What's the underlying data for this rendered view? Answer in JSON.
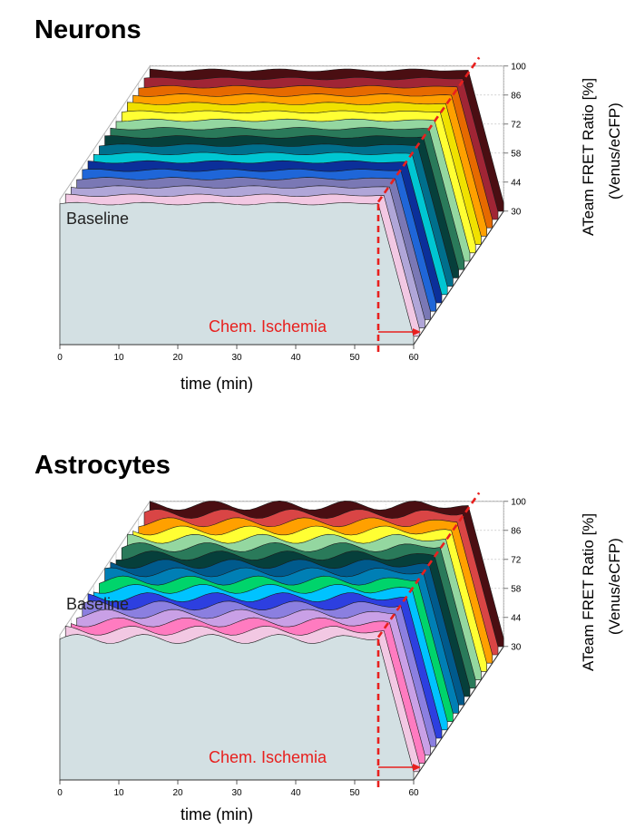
{
  "chart_data": [
    {
      "type": "area",
      "title": "Neurons",
      "xlabel": "time (min)",
      "ylabel_line1": "ATeam FRET Ratio [%]",
      "ylabel_line2": "(Venus/eCFP)",
      "xticks": [
        "0",
        "10",
        "20",
        "30",
        "40",
        "50",
        "60"
      ],
      "yticks": [
        "30",
        "44",
        "58",
        "72",
        "86",
        "100"
      ],
      "xlim": [
        0,
        60
      ],
      "ylim": [
        30,
        100
      ],
      "grid": true,
      "series_colors": [
        "#d3e0e3",
        "#f2c8e3",
        "#b0a6d8",
        "#7a78b5",
        "#1f66d8",
        "#0b2f9a",
        "#00c6d2",
        "#006f8c",
        "#063f3b",
        "#2a7a5a",
        "#94d7a0",
        "#ffff33",
        "#f0e100",
        "#ffa000",
        "#e66a00",
        "#a02535",
        "#4a0e12"
      ],
      "baseline_label": "Baseline",
      "annotation": "Chem. Ischemia",
      "ischemia_time": 54,
      "series_profile": {
        "time": [
          0,
          10,
          20,
          30,
          40,
          50,
          54,
          57,
          60
        ],
        "ratio": [
          98,
          98,
          98,
          98,
          98,
          98,
          98,
          66,
          34
        ]
      }
    },
    {
      "type": "area",
      "title": "Astrocytes",
      "xlabel": "time (min)",
      "ylabel_line1": "ATeam FRET Ratio [%]",
      "ylabel_line2": "(Venus/eCFP)",
      "xticks": [
        "0",
        "10",
        "20",
        "30",
        "40",
        "50",
        "60"
      ],
      "yticks": [
        "30",
        "44",
        "58",
        "72",
        "86",
        "100"
      ],
      "xlim": [
        0,
        60
      ],
      "ylim": [
        30,
        100
      ],
      "grid": true,
      "series_colors": [
        "#d3e0e3",
        "#f2c8e3",
        "#ff7bc0",
        "#c9a0e6",
        "#8b7fe0",
        "#2d3fe0",
        "#00c3ff",
        "#00d46b",
        "#007fb5",
        "#005a8c",
        "#063f3b",
        "#2a7a5a",
        "#94d7a0",
        "#ffff33",
        "#ffa000",
        "#d94545",
        "#4a0e12"
      ],
      "baseline_label": "Baseline",
      "annotation": "Chem. Ischemia",
      "ischemia_time": 54,
      "series_profile": {
        "time": [
          0,
          10,
          20,
          30,
          40,
          50,
          54,
          57,
          60
        ],
        "ratio": [
          98,
          98,
          98,
          98,
          98,
          98,
          98,
          66,
          34
        ]
      }
    }
  ]
}
